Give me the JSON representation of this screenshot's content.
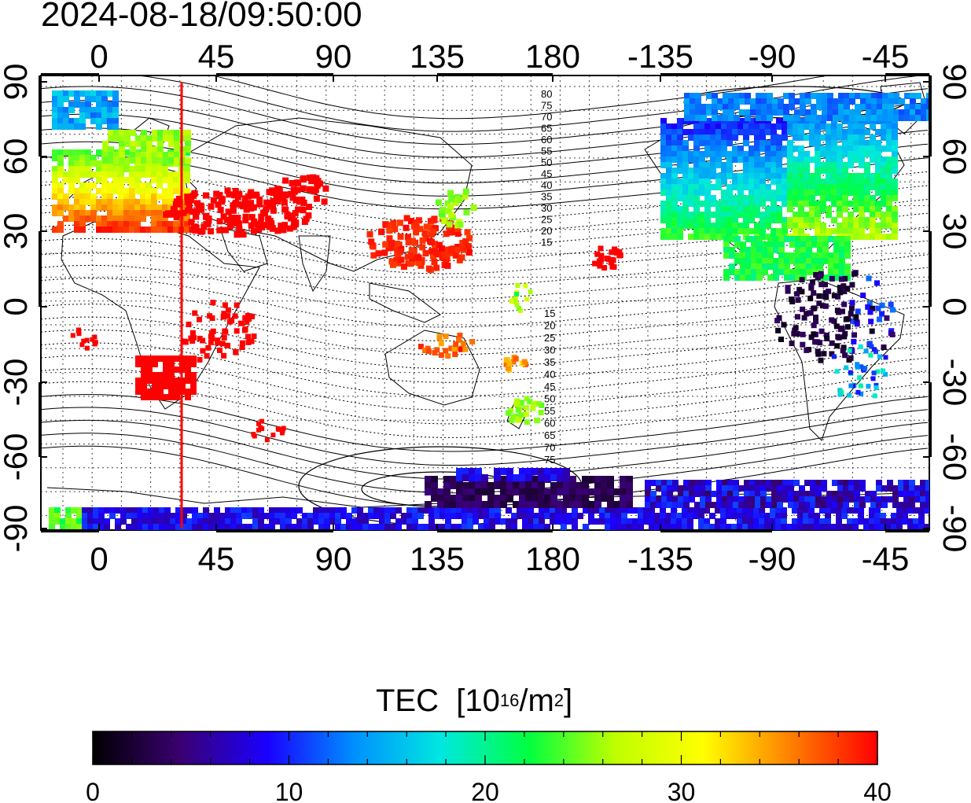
{
  "title": "2024-08-18/09:50:00",
  "map": {
    "projection": "equirectangular",
    "central_longitude": 160,
    "lon_ticks_bottom": [
      "0",
      "45",
      "90",
      "135",
      "180",
      "-135",
      "-90",
      "-45"
    ],
    "lon_ticks_top": [
      "0",
      "45",
      "90",
      "135",
      "180",
      "-135",
      "-90",
      "-45"
    ],
    "lat_ticks_left": [
      "90",
      "60",
      "30",
      "0",
      "-30",
      "-60",
      "-90"
    ],
    "lat_ticks_right": [
      "90",
      "60",
      "30",
      "0",
      "-30",
      "-60",
      "-90"
    ],
    "grid": "dotted",
    "marker_line": {
      "longitude": 32,
      "color": "#ff0000"
    },
    "contour_labels_north": [
      "80",
      "75",
      "70",
      "65",
      "60",
      "55",
      "50",
      "45",
      "40",
      "35",
      "30",
      "25",
      "20",
      "15"
    ],
    "contour_labels_south": [
      "15",
      "20",
      "25",
      "30",
      "35",
      "40",
      "45",
      "50",
      "55",
      "60",
      "65",
      "70",
      "75"
    ]
  },
  "colorbar": {
    "title": "TEC",
    "unit_base": "[10",
    "unit_exp": "16",
    "unit_mid": "/m",
    "unit_exp2": "2",
    "unit_end": "]",
    "min": 0,
    "max": 40,
    "tick_labels": [
      "0",
      "10",
      "20",
      "30",
      "40"
    ],
    "colors": [
      "#000000",
      "#3a0070",
      "#1a00ff",
      "#0090ff",
      "#00e8e0",
      "#00ff40",
      "#c0ff00",
      "#ffff00",
      "#ff8000",
      "#ff0000"
    ]
  },
  "tec_regions": [
    {
      "name": "europe-north",
      "tec": 24
    },
    {
      "name": "europe-central",
      "tec": 32
    },
    {
      "name": "east-asia",
      "tec": 38
    },
    {
      "name": "north-america",
      "tec": 14
    },
    {
      "name": "canada-arctic",
      "tec": 11
    },
    {
      "name": "south-america",
      "tec": 3
    },
    {
      "name": "southern-africa",
      "tec": 40
    },
    {
      "name": "antarctica",
      "tec": 6
    },
    {
      "name": "new-zealand",
      "tec": 24
    }
  ]
}
